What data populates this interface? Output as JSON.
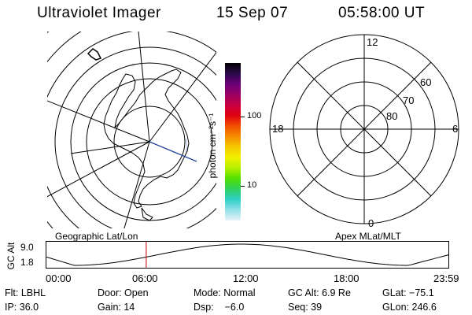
{
  "header": {
    "title": "Ultraviolet Imager",
    "date": "15 Sep 07",
    "time": "05:58:00 UT"
  },
  "colorbar": {
    "unit_label": "photon cm⁻²s⁻¹",
    "ticks": [
      "100",
      "10"
    ],
    "colors": [
      "#000000",
      "#2a0a4a",
      "#6a0078",
      "#9a0064",
      "#c80040",
      "#e00010",
      "#f05000",
      "#f58c00",
      "#f5c800",
      "#f0f000",
      "#b4f000",
      "#50e000",
      "#30d060",
      "#30d0c8",
      "#90e0e8",
      "#e8f4f8"
    ]
  },
  "polar_plot": {
    "labels": {
      "top": "12",
      "left": "18",
      "right": "6",
      "bottom": "0"
    },
    "latitude_labels": [
      "60",
      "70",
      "80"
    ]
  },
  "map_caption": "Geographic Lat/Lon",
  "polar_caption": "Apex MLat/MLT",
  "altitude_plot": {
    "axis_label": "GC Alt",
    "y_ticks": [
      "9.0",
      "1.8"
    ],
    "x_ticks": [
      "00:00",
      "06:00",
      "12:00",
      "18:00",
      "23:59"
    ],
    "marker_time": "05:58",
    "marker_color": "#c00000"
  },
  "status": {
    "filter": "Flt: LBHL",
    "door": "Door: Open",
    "mode": "Mode: Normal",
    "gc_alt": "GC Alt: 6.9 Re",
    "glat": "GLat: −75.1",
    "ip": "IP: 36.0",
    "gain": "Gain: 14",
    "dsp": "Dsp:    −6.0",
    "seq": "Seq: 39",
    "glon": "GLon: 246.6"
  }
}
